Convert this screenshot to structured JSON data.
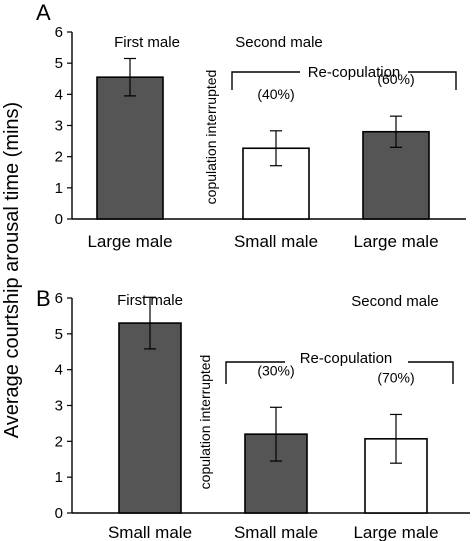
{
  "ylabel": "Average courtship arousal time (mins)",
  "chart_data": [
    {
      "type": "bar",
      "panel_label": "A",
      "ylim": [
        0,
        6
      ],
      "yticks": [
        "0",
        "1",
        "2",
        "3",
        "4",
        "5",
        "6"
      ],
      "categories": [
        "Large male",
        "Small male",
        "Large male"
      ],
      "values": [
        4.55,
        2.27,
        2.8
      ],
      "errors": [
        0.6,
        0.56,
        0.5
      ],
      "fills": [
        "#555555",
        "#ffffff",
        "#555555"
      ],
      "percent_labels": [
        "",
        "(40%)",
        "(60%)"
      ],
      "annotations": {
        "first": "First male",
        "second": "Second male",
        "recop": "Re-copulation",
        "interrupted": "copulation interrupted"
      }
    },
    {
      "type": "bar",
      "panel_label": "B",
      "ylim": [
        0,
        6
      ],
      "yticks": [
        "0",
        "1",
        "2",
        "3",
        "4",
        "5",
        "6"
      ],
      "categories": [
        "Small male",
        "Small male",
        "Large male"
      ],
      "values": [
        5.3,
        2.2,
        2.07
      ],
      "errors": [
        0.72,
        0.75,
        0.68
      ],
      "fills": [
        "#555555",
        "#555555",
        "#ffffff"
      ],
      "percent_labels": [
        "",
        "(30%)",
        "(70%)"
      ],
      "annotations": {
        "first": "First male",
        "second": "Second male",
        "recop": "Re-copulation",
        "interrupted": "copulation interrupted"
      }
    }
  ]
}
